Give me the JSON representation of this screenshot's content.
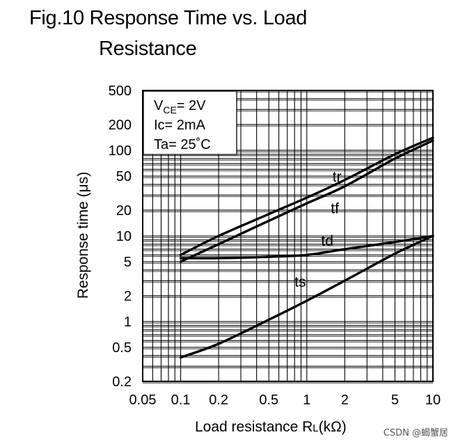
{
  "figure": {
    "title_line1": "Fig.10 Response Time vs. Load",
    "title_line2": "Resistance"
  },
  "chart_data": {
    "type": "line",
    "title": "Fig.10 Response Time vs. Load Resistance",
    "xlabel": "Load resistance R",
    "xlabel_sub": "L",
    "xlabel_unit": "(kΩ)",
    "ylabel": "Response time (μs)",
    "x_scale": "log",
    "y_scale": "log",
    "xlim": [
      0.05,
      10
    ],
    "ylim": [
      0.2,
      500
    ],
    "grid": true,
    "x_ticks": [
      {
        "value": 0.05,
        "label": "0.05"
      },
      {
        "value": 0.1,
        "label": "0.1"
      },
      {
        "value": 0.2,
        "label": "0.2"
      },
      {
        "value": 0.5,
        "label": "0.5"
      },
      {
        "value": 1,
        "label": "1"
      },
      {
        "value": 2,
        "label": "2"
      },
      {
        "value": 5,
        "label": "5"
      },
      {
        "value": 10,
        "label": "10"
      }
    ],
    "y_ticks": [
      {
        "value": 500,
        "label": "500"
      },
      {
        "value": 200,
        "label": "200"
      },
      {
        "value": 100,
        "label": "100"
      },
      {
        "value": 50,
        "label": "50"
      },
      {
        "value": 20,
        "label": "20"
      },
      {
        "value": 10,
        "label": "10"
      },
      {
        "value": 5,
        "label": "5"
      },
      {
        "value": 2,
        "label": "2"
      },
      {
        "value": 1,
        "label": "1"
      },
      {
        "value": 0.5,
        "label": "0.5"
      },
      {
        "value": 0.2,
        "label": "0.2"
      }
    ],
    "conditions": {
      "vce_prefix": "V",
      "vce_sub": "CE",
      "vce_value": "= 2V",
      "ic": "Ic= 2mA",
      "ta": "Ta= 25˚C",
      "placement": "top-left"
    },
    "series": [
      {
        "name": "tr",
        "x": [
          0.1,
          0.2,
          0.5,
          1,
          2,
          5,
          10
        ],
        "y": [
          6,
          10,
          18,
          28,
          45,
          90,
          140
        ]
      },
      {
        "name": "tf",
        "x": [
          0.1,
          0.2,
          0.5,
          1,
          2,
          5,
          10
        ],
        "y": [
          5,
          8,
          15,
          24,
          38,
          80,
          130
        ]
      },
      {
        "name": "td",
        "x": [
          0.1,
          0.2,
          0.5,
          1,
          2,
          5,
          10
        ],
        "y": [
          5.5,
          5.5,
          5.7,
          6,
          7,
          8.5,
          10
        ]
      },
      {
        "name": "ts",
        "x": [
          0.1,
          0.2,
          0.5,
          1,
          2,
          5,
          10
        ],
        "y": [
          0.38,
          0.55,
          1.05,
          1.75,
          3,
          6.2,
          10
        ]
      }
    ]
  },
  "watermark": "CSDN @蝎蟹居"
}
